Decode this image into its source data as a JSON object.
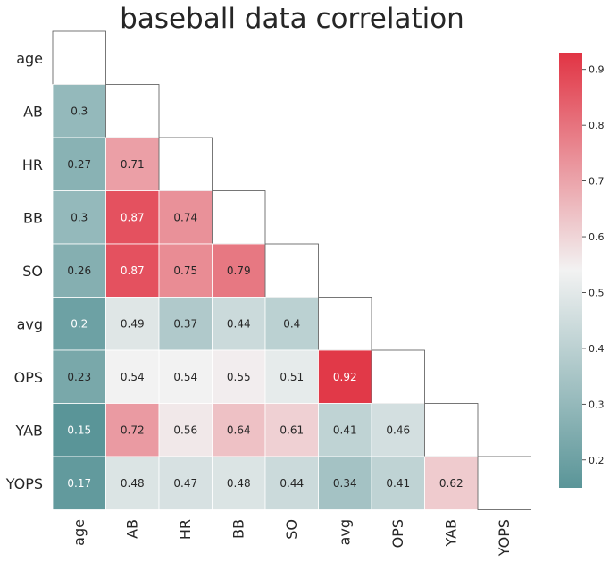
{
  "chart_data": {
    "type": "heatmap",
    "title": "baseball data correlation",
    "variables": [
      "age",
      "AB",
      "HR",
      "BB",
      "SO",
      "avg",
      "OPS",
      "YAB",
      "YOPS"
    ],
    "mask": "upper-triangle-including-diagonal",
    "matrix": [
      [
        null,
        null,
        null,
        null,
        null,
        null,
        null,
        null,
        null
      ],
      [
        0.3,
        null,
        null,
        null,
        null,
        null,
        null,
        null,
        null
      ],
      [
        0.27,
        0.71,
        null,
        null,
        null,
        null,
        null,
        null,
        null
      ],
      [
        0.3,
        0.87,
        0.74,
        null,
        null,
        null,
        null,
        null,
        null
      ],
      [
        0.26,
        0.87,
        0.75,
        0.79,
        null,
        null,
        null,
        null,
        null
      ],
      [
        0.2,
        0.49,
        0.37,
        0.44,
        0.4,
        null,
        null,
        null,
        null
      ],
      [
        0.23,
        0.54,
        0.54,
        0.55,
        0.51,
        0.92,
        null,
        null,
        null
      ],
      [
        0.15,
        0.72,
        0.56,
        0.64,
        0.61,
        0.41,
        0.46,
        null,
        null
      ],
      [
        0.17,
        0.48,
        0.47,
        0.48,
        0.44,
        0.34,
        0.41,
        0.62,
        null
      ]
    ],
    "colorbar": {
      "min": 0.15,
      "max": 0.93,
      "ticks": [
        0.2,
        0.3,
        0.4,
        0.5,
        0.6,
        0.7,
        0.8,
        0.9
      ],
      "tick_labels": [
        "0.2",
        "0.3",
        "0.4",
        "0.5",
        "0.6",
        "0.7",
        "0.8",
        "0.9"
      ]
    },
    "colormap": {
      "low": "#5a9598",
      "mid": "#f2f2f2",
      "high": "#e13444"
    }
  }
}
